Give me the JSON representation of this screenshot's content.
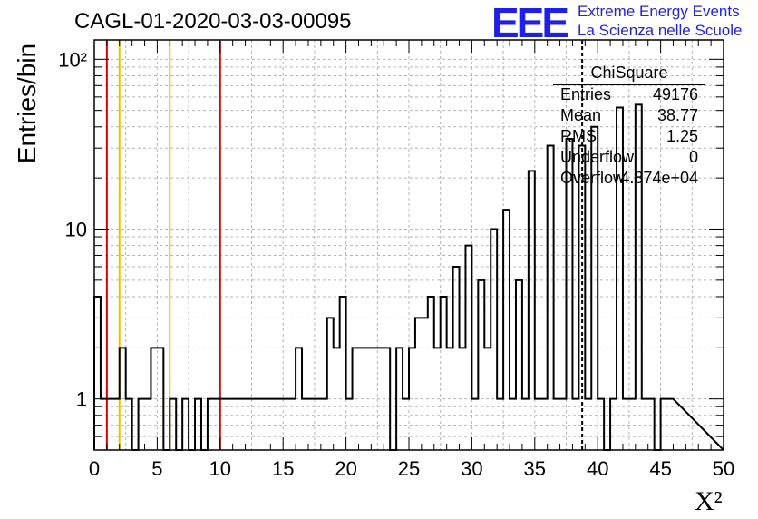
{
  "header": {
    "title": "CAGL-01-2020-03-03-00095",
    "logo_text": "EEE",
    "brand_line1": "Extreme Energy Events",
    "brand_line2": "La Scienza nelle Scuole"
  },
  "stats": {
    "name": "ChiSquare",
    "rows": [
      {
        "key": "Entries",
        "value": "49176"
      },
      {
        "key": "Mean",
        "value": "38.77"
      },
      {
        "key": "RMS",
        "value": "1.25"
      },
      {
        "key": "Underflow",
        "value": "0"
      },
      {
        "key": "Overflow",
        "value": "4.874e+04"
      }
    ]
  },
  "colors": {
    "histogram": "#000000",
    "red_line": "#e00000",
    "yellow_line": "#f0c000",
    "grid": "#b4b4b4"
  },
  "chart_data": {
    "type": "histogram",
    "title": "CAGL-01-2020-03-03-00095",
    "xlabel": "X²",
    "ylabel": "Entries/bin",
    "xlim": [
      0,
      50
    ],
    "ylim": [
      0.5,
      130
    ],
    "yscale": "log",
    "grid": true,
    "bin_width": 0.5,
    "xticks": [
      0,
      5,
      10,
      15,
      20,
      25,
      30,
      35,
      40,
      45,
      50
    ],
    "yticks": [
      {
        "value": 1,
        "label": "1"
      },
      {
        "value": 10,
        "label": "10"
      },
      {
        "value": 100,
        "label": "10²"
      }
    ],
    "counts": [
      4,
      1,
      1,
      1,
      2,
      1,
      0,
      1,
      1,
      2,
      2,
      0,
      1,
      0,
      1,
      0,
      1,
      0,
      1,
      1,
      1,
      1,
      1,
      1,
      1,
      1,
      1,
      1,
      1,
      1,
      1,
      1,
      2,
      1,
      1,
      1,
      1,
      3,
      2,
      4,
      1,
      2,
      2,
      2,
      2,
      2,
      2,
      0,
      2,
      1,
      2,
      3,
      3,
      4,
      2,
      4,
      2,
      6,
      2,
      8,
      1,
      5,
      2,
      10,
      1,
      13,
      1,
      5,
      1,
      22,
      1,
      1,
      31,
      1,
      1,
      34,
      1,
      31,
      1,
      40,
      1,
      0,
      1,
      52,
      1,
      1,
      54,
      1,
      1,
      0,
      1,
      1
    ],
    "vertical_lines": [
      {
        "x": 1.0,
        "color": "red",
        "style": "solid"
      },
      {
        "x": 2.0,
        "color": "yellow",
        "style": "solid"
      },
      {
        "x": 6.0,
        "color": "yellow",
        "style": "solid"
      },
      {
        "x": 10.0,
        "color": "red",
        "style": "solid"
      },
      {
        "x": 38.77,
        "color": "black",
        "style": "dashed"
      }
    ]
  }
}
